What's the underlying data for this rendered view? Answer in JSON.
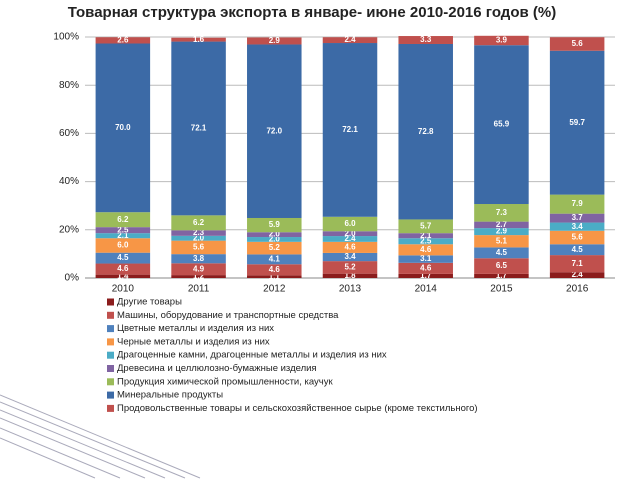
{
  "chart_data": {
    "type": "stacked-bar",
    "title": "Товарная структура экспорта в январе- июне 2010-2016 годов (%)",
    "categories": [
      "2010",
      "2011",
      "2012",
      "2013",
      "2014",
      "2015",
      "2016"
    ],
    "ylim": [
      0,
      100
    ],
    "yticks": [
      {
        "value": 0,
        "label": "0%"
      },
      {
        "value": 20,
        "label": "20%"
      },
      {
        "value": 40,
        "label": "40%"
      },
      {
        "value": 60,
        "label": "60%"
      },
      {
        "value": 80,
        "label": "80%"
      },
      {
        "value": 100,
        "label": "100%"
      }
    ],
    "grid": true,
    "series": [
      {
        "name": "Другие товары",
        "color": "#8b1c1c",
        "values": [
          1.4,
          1.2,
          1.1,
          1.8,
          1.7,
          1.7,
          2.4
        ],
        "value_labels": [
          "1.4",
          "1.2",
          "1.1",
          "1.8",
          "1.7",
          "1.7",
          "2.4"
        ]
      },
      {
        "name": "Машины, оборудование и транспортные средства",
        "color": "#c0504d",
        "values": [
          4.6,
          4.9,
          4.6,
          5.2,
          4.6,
          6.5,
          7.1
        ],
        "value_labels": [
          "4.6",
          "4.9",
          "4.6",
          "5.2",
          "4.6",
          "6.5",
          "7.1"
        ]
      },
      {
        "name": "Цветные металлы и изделия из них",
        "color": "#4f81bd",
        "values": [
          4.5,
          3.8,
          4.1,
          3.4,
          3.1,
          4.5,
          4.5
        ],
        "value_labels": [
          "4.5",
          "3.8",
          "4.1",
          "3.4",
          "3.1",
          "4.5",
          "4.5"
        ]
      },
      {
        "name": "Черные металлы и изделия из них",
        "color": "#f79646",
        "values": [
          6.0,
          5.6,
          5.2,
          4.6,
          4.6,
          5.1,
          5.6
        ],
        "value_labels": [
          "6.0",
          "5.6",
          "5.2",
          "4.6",
          "4.6",
          "5.1",
          "5.6"
        ]
      },
      {
        "name": "Драгоценные камни, драгоценные металлы и изделия из них",
        "color": "#4bacc6",
        "values": [
          2.1,
          2.0,
          2.0,
          2.4,
          2.5,
          2.9,
          3.4
        ],
        "value_labels": [
          "2.1",
          "2.0",
          "2.0",
          "2.4",
          "2.5",
          "2.9",
          "3.4"
        ]
      },
      {
        "name": "Древесина и целлюлозно-бумажные изделия",
        "color": "#8064a2",
        "values": [
          2.5,
          2.3,
          2.0,
          2.0,
          2.1,
          2.7,
          3.7
        ],
        "value_labels": [
          "2.5",
          "2.3",
          "2.0",
          "2.0",
          "2.1",
          "2.7",
          "3.7"
        ]
      },
      {
        "name": "Продукция химической промышленности, каучук",
        "color": "#9bbb59",
        "values": [
          6.2,
          6.2,
          5.9,
          6.0,
          5.7,
          7.3,
          7.9
        ],
        "value_labels": [
          "6.2",
          "6.2",
          "5.9",
          "6.0",
          "5.7",
          "7.3",
          "7.9"
        ]
      },
      {
        "name": "Минеральные продукты",
        "color": "#3c6aa6",
        "values": [
          70.0,
          72.1,
          72.0,
          72.1,
          72.8,
          65.9,
          59.7
        ],
        "value_labels": [
          "70.0",
          "72.1",
          "72.0",
          "72.1",
          "72.8",
          "65.9",
          "59.7"
        ]
      },
      {
        "name": "Продовольственные товары и сельскохозяйственное сырье (кроме текстильного)",
        "color": "#c0504d",
        "values": [
          2.6,
          1.6,
          2.9,
          2.4,
          3.3,
          3.9,
          5.6
        ],
        "value_labels": [
          "2.6",
          "1.6",
          "2.9",
          "2.4",
          "3.3",
          "3.9",
          "5.6"
        ]
      }
    ]
  }
}
